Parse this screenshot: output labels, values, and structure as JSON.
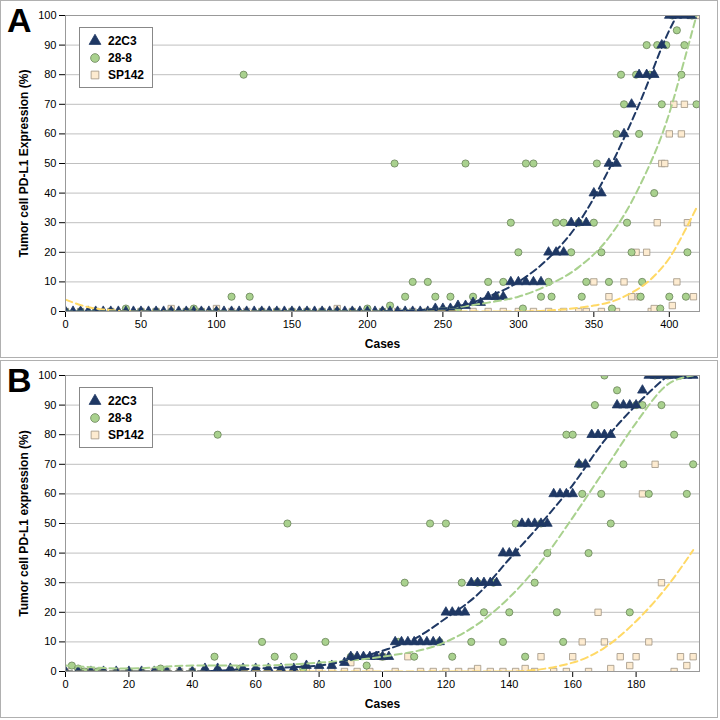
{
  "chart_data": [
    {
      "type": "scatter",
      "title": "A",
      "x_label": "Cases",
      "y_label": "Tumor cell PD-L1 Expression (%)",
      "xlim": [
        0,
        420
      ],
      "xticks": [
        0,
        50,
        100,
        150,
        200,
        250,
        300,
        350,
        400
      ],
      "ylim": [
        0,
        100
      ],
      "yticks": [
        0,
        10,
        20,
        30,
        40,
        50,
        60,
        70,
        80,
        90,
        100
      ],
      "grid": true,
      "legend": "top-left",
      "series": [
        {
          "name": "22C3",
          "color": "#1f3864",
          "marker": "triangle",
          "line_style": "dashed",
          "x": [
            0,
            5,
            10,
            15,
            20,
            25,
            30,
            35,
            40,
            45,
            50,
            55,
            60,
            65,
            70,
            75,
            80,
            85,
            90,
            95,
            100,
            105,
            110,
            115,
            120,
            125,
            130,
            135,
            140,
            145,
            150,
            155,
            160,
            165,
            170,
            175,
            180,
            185,
            190,
            195,
            200,
            205,
            210,
            215,
            220,
            225,
            230,
            235,
            240,
            245,
            250,
            255,
            260,
            265,
            270,
            275,
            280,
            285,
            290,
            295,
            300,
            305,
            310,
            315,
            320,
            325,
            330,
            335,
            340,
            345,
            350,
            355,
            360,
            365,
            370,
            375,
            380,
            385,
            390,
            395,
            400,
            405,
            410,
            415
          ],
          "values": [
            0,
            0,
            0,
            0,
            0,
            0,
            0,
            0,
            0,
            0,
            0,
            0,
            0,
            0,
            0,
            0,
            0,
            0,
            0,
            0,
            0,
            0,
            0,
            0,
            0,
            0,
            0,
            0,
            0,
            0,
            0,
            0,
            0,
            0,
            0,
            0,
            0,
            0,
            0,
            0,
            0,
            0,
            0,
            0,
            0,
            0,
            0,
            0,
            0,
            1,
            1,
            1,
            2,
            2,
            3,
            3,
            5,
            5,
            5,
            10,
            10,
            10,
            10,
            10,
            20,
            20,
            20,
            30,
            30,
            30,
            40,
            40,
            50,
            50,
            60,
            70,
            80,
            80,
            80,
            90,
            100,
            100,
            100,
            100
          ],
          "trend": {
            "color": "#1f3864",
            "x": [
              0,
              100,
              200,
              250,
              280,
              300,
              320,
              340,
              360,
              380,
              400,
              405
            ],
            "values": [
              0,
              0,
              0,
              1,
              5,
              10,
              18,
              30,
              48,
              70,
              95,
              100
            ]
          }
        },
        {
          "name": "28-8",
          "color": "#a9d18e",
          "marker": "circle",
          "line_style": "dashed",
          "x": [
            0,
            10,
            20,
            30,
            40,
            50,
            60,
            70,
            80,
            85,
            90,
            100,
            110,
            118,
            122,
            130,
            140,
            150,
            160,
            170,
            180,
            190,
            200,
            210,
            215,
            218,
            225,
            230,
            240,
            245,
            255,
            260,
            265,
            270,
            280,
            285,
            290,
            295,
            300,
            303,
            305,
            310,
            315,
            320,
            322,
            325,
            330,
            335,
            340,
            342,
            345,
            350,
            352,
            355,
            360,
            362,
            365,
            368,
            370,
            372,
            375,
            378,
            380,
            381,
            382,
            385,
            387,
            390,
            392,
            394,
            395,
            398,
            400,
            402,
            405,
            408,
            410,
            411,
            412,
            415,
            418
          ],
          "values": [
            0,
            0,
            0,
            0,
            1,
            0,
            0,
            0,
            0,
            1,
            0,
            0,
            5,
            80,
            5,
            0,
            0,
            0,
            0,
            0,
            0,
            0,
            1,
            0,
            2,
            50,
            5,
            10,
            10,
            5,
            5,
            1,
            50,
            5,
            10,
            5,
            10,
            30,
            20,
            1,
            50,
            50,
            5,
            10,
            5,
            30,
            30,
            20,
            30,
            5,
            10,
            30,
            50,
            20,
            10,
            1,
            60,
            80,
            70,
            30,
            20,
            80,
            60,
            5,
            10,
            90,
            80,
            40,
            90,
            1,
            70,
            90,
            5,
            100,
            95,
            80,
            90,
            5,
            20,
            100,
            70
          ],
          "trend": {
            "color": "#a9d18e",
            "x": [
              0,
              100,
              200,
              250,
              280,
              300,
              320,
              340,
              360,
              380,
              400,
              410,
              418
            ],
            "values": [
              0,
              0,
              0,
              1,
              3,
              5,
              9,
              15,
              25,
              42,
              67,
              85,
              100
            ]
          }
        },
        {
          "name": "SP142",
          "color": "#fdebd0",
          "marker": "square",
          "line_style": "dashed",
          "x": [
            0,
            10,
            20,
            30,
            40,
            50,
            60,
            70,
            80,
            90,
            100,
            110,
            120,
            130,
            140,
            150,
            160,
            170,
            180,
            190,
            200,
            210,
            220,
            230,
            240,
            250,
            260,
            270,
            280,
            290,
            300,
            310,
            320,
            330,
            340,
            345,
            350,
            355,
            360,
            365,
            370,
            375,
            378,
            380,
            385,
            388,
            390,
            392,
            395,
            397,
            400,
            402,
            403,
            405,
            408,
            410,
            412,
            414,
            416,
            418
          ],
          "values": [
            0,
            0,
            0,
            0,
            0,
            0,
            0,
            1,
            0,
            0,
            1,
            0,
            0,
            0,
            0,
            0,
            0,
            0,
            1,
            0,
            0,
            0,
            0,
            0,
            0,
            0,
            1,
            0,
            0,
            0,
            0,
            0,
            0,
            0,
            0,
            0,
            10,
            0,
            5,
            0,
            10,
            5,
            20,
            5,
            20,
            0,
            1,
            30,
            50,
            50,
            60,
            2,
            70,
            10,
            60,
            70,
            30,
            100,
            5,
            100
          ],
          "trend": {
            "color": "#ffd966",
            "x": [
              0,
              20,
              50,
              100,
              200,
              300,
              350,
              370,
              390,
              400,
              410,
              418
            ],
            "values": [
              4,
              1,
              0,
              0,
              0,
              0,
              2,
              5,
              12,
              18,
              27,
              35
            ]
          }
        }
      ]
    },
    {
      "type": "scatter",
      "title": "B",
      "x_label": "Cases",
      "y_label": "Tumor cell PD-L1 expression (%)",
      "xlim": [
        0,
        200
      ],
      "xticks": [
        0,
        20,
        40,
        60,
        80,
        100,
        120,
        140,
        160,
        180
      ],
      "ylim": [
        0,
        100
      ],
      "yticks": [
        0,
        10,
        20,
        30,
        40,
        50,
        60,
        70,
        80,
        90,
        100
      ],
      "grid": true,
      "legend": "top-left",
      "series": [
        {
          "name": "22C3",
          "color": "#1f3864",
          "marker": "triangle",
          "line_style": "dashed",
          "x": [
            0,
            4,
            8,
            12,
            16,
            20,
            24,
            28,
            32,
            36,
            40,
            44,
            48,
            52,
            56,
            60,
            64,
            68,
            72,
            76,
            80,
            84,
            88,
            90,
            92,
            94,
            96,
            98,
            100,
            102,
            104,
            106,
            108,
            110,
            112,
            114,
            116,
            118,
            120,
            122,
            124,
            126,
            128,
            130,
            132,
            134,
            136,
            138,
            140,
            142,
            144,
            146,
            148,
            150,
            152,
            154,
            156,
            158,
            160,
            162,
            164,
            166,
            168,
            170,
            172,
            174,
            176,
            178,
            180,
            182,
            184,
            186,
            188,
            190,
            192,
            194,
            196,
            198
          ],
          "values": [
            0,
            0,
            0,
            0,
            0,
            0,
            0,
            0,
            0,
            0,
            0,
            1,
            1,
            1,
            1,
            1,
            1,
            1,
            1,
            2,
            2,
            2,
            3,
            5,
            5,
            5,
            5,
            5,
            5,
            5,
            10,
            10,
            10,
            10,
            10,
            10,
            10,
            10,
            20,
            20,
            20,
            20,
            30,
            30,
            30,
            30,
            30,
            40,
            40,
            40,
            50,
            50,
            50,
            50,
            50,
            60,
            60,
            60,
            60,
            70,
            70,
            80,
            80,
            80,
            80,
            90,
            90,
            90,
            90,
            95,
            100,
            100,
            100,
            100,
            100,
            100,
            100,
            100
          ],
          "trend": {
            "color": "#1f3864",
            "x": [
              0,
              40,
              60,
              80,
              90,
              100,
              110,
              120,
              130,
              140,
              150,
              160,
              170,
              180,
              190
            ],
            "values": [
              0,
              0,
              1,
              2,
              4,
              7,
              11,
              18,
              26,
              38,
              50,
              63,
              78,
              90,
              100
            ]
          }
        },
        {
          "name": "28-8",
          "color": "#a9d18e",
          "marker": "circle",
          "line_style": "dashed",
          "x": [
            2,
            4,
            6,
            10,
            20,
            30,
            40,
            47,
            48,
            55,
            62,
            66,
            70,
            72,
            75,
            82,
            90,
            95,
            100,
            105,
            107,
            110,
            115,
            118,
            120,
            122,
            125,
            128,
            130,
            132,
            135,
            138,
            140,
            142,
            145,
            148,
            150,
            152,
            155,
            157,
            158,
            160,
            162,
            163,
            165,
            167,
            169,
            170,
            172,
            174,
            176,
            178,
            180,
            182,
            184,
            186,
            188,
            190,
            192,
            194,
            196,
            198
          ],
          "values": [
            2,
            1,
            0,
            0,
            0,
            1,
            0,
            5,
            80,
            1,
            10,
            5,
            50,
            5,
            1,
            10,
            5,
            2,
            5,
            10,
            30,
            5,
            50,
            10,
            50,
            5,
            30,
            10,
            30,
            20,
            30,
            10,
            20,
            50,
            5,
            30,
            50,
            40,
            20,
            10,
            80,
            80,
            70,
            60,
            40,
            90,
            60,
            100,
            50,
            95,
            70,
            20,
            90,
            90,
            60,
            100,
            90,
            100,
            80,
            100,
            60,
            70
          ],
          "trend": {
            "color": "#a9d18e",
            "x": [
              0,
              20,
              40,
              60,
              80,
              100,
              120,
              130,
              140,
              150,
              160,
              170,
              180,
              190,
              198
            ],
            "values": [
              2,
              1,
              2,
              2,
              3,
              5,
              10,
              16,
              25,
              37,
              52,
              68,
              84,
              97,
              100
            ]
          }
        },
        {
          "name": "SP142",
          "color": "#fdebd0",
          "marker": "square",
          "line_style": "dashed",
          "x": [
            0,
            4,
            8,
            12,
            16,
            20,
            24,
            28,
            32,
            36,
            40,
            44,
            48,
            52,
            56,
            60,
            64,
            68,
            72,
            76,
            80,
            84,
            88,
            90,
            92,
            96,
            100,
            104,
            108,
            112,
            116,
            120,
            124,
            128,
            130,
            134,
            138,
            142,
            145,
            148,
            150,
            154,
            158,
            160,
            163,
            165,
            168,
            170,
            172,
            175,
            178,
            180,
            182,
            184,
            186,
            188,
            190,
            192,
            194,
            196,
            198
          ],
          "values": [
            0,
            0,
            0,
            0,
            0,
            0,
            0,
            0,
            0,
            0,
            0,
            0,
            0,
            0,
            0,
            0,
            0,
            0,
            0,
            0,
            0,
            0,
            0,
            3,
            0,
            0,
            5,
            0,
            5,
            0,
            0,
            0,
            0,
            0,
            1,
            0,
            0,
            0,
            1,
            0,
            5,
            0,
            0,
            5,
            10,
            0,
            20,
            10,
            1,
            5,
            2,
            5,
            60,
            10,
            70,
            30,
            100,
            0,
            5,
            2,
            5
          ],
          "trend": {
            "color": "#ffd966",
            "x": [
              0,
              100,
              140,
              160,
              170,
              180,
              190,
              198
            ],
            "values": [
              0,
              0,
              0,
              3,
              8,
              17,
              29,
              41
            ]
          }
        }
      ]
    }
  ]
}
